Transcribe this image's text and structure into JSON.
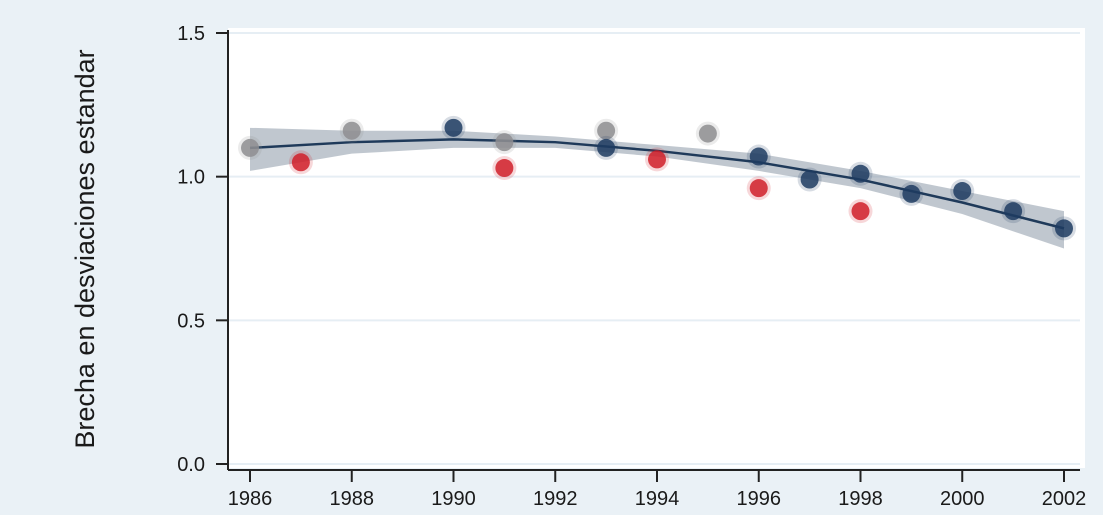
{
  "chart_data": {
    "type": "scatter",
    "title": "",
    "xlabel": "",
    "ylabel": "Brecha en desviaciones estandar",
    "xlim": [
      1986,
      2002
    ],
    "ylim": [
      0,
      1.5
    ],
    "x_ticks": [
      1986,
      1988,
      1990,
      1992,
      1994,
      1996,
      1998,
      2000,
      2002
    ],
    "y_ticks": [
      0.0,
      0.5,
      1.0,
      1.5
    ],
    "y_tick_labels": [
      "0.0",
      "0.5",
      "1.0",
      "1.5"
    ],
    "grid": true,
    "legend": "none",
    "colors": {
      "background": "#eaf1f6",
      "plot_area": "#ffffff",
      "grid": "#e6eef4",
      "axis": "#222222",
      "fit_line": "#1f3a5a",
      "confidence_band": "#8c99a8"
    },
    "series": [
      {
        "color": "#1f3c62",
        "points": [
          {
            "x": 1990,
            "y": 1.17
          },
          {
            "x": 1993,
            "y": 1.1
          },
          {
            "x": 1996,
            "y": 1.07
          },
          {
            "x": 1997,
            "y": 0.99
          },
          {
            "x": 1998,
            "y": 1.01
          },
          {
            "x": 1999,
            "y": 0.94
          },
          {
            "x": 2000,
            "y": 0.95
          },
          {
            "x": 2001,
            "y": 0.88
          },
          {
            "x": 2002,
            "y": 0.82
          }
        ]
      },
      {
        "color": "#d0202a",
        "points": [
          {
            "x": 1987,
            "y": 1.05
          },
          {
            "x": 1991,
            "y": 1.03
          },
          {
            "x": 1994,
            "y": 1.06
          },
          {
            "x": 1996,
            "y": 0.96
          },
          {
            "x": 1998,
            "y": 0.88
          }
        ]
      },
      {
        "color": "#8e8e92",
        "points": [
          {
            "x": 1986,
            "y": 1.1
          },
          {
            "x": 1988,
            "y": 1.16
          },
          {
            "x": 1991,
            "y": 1.12
          },
          {
            "x": 1993,
            "y": 1.16
          },
          {
            "x": 1995,
            "y": 1.15
          }
        ]
      }
    ],
    "fit_line": {
      "points": [
        {
          "x": 1986,
          "y": 1.1
        },
        {
          "x": 1988,
          "y": 1.12
        },
        {
          "x": 1990,
          "y": 1.13
        },
        {
          "x": 1992,
          "y": 1.12
        },
        {
          "x": 1994,
          "y": 1.09
        },
        {
          "x": 1996,
          "y": 1.05
        },
        {
          "x": 1998,
          "y": 0.99
        },
        {
          "x": 2000,
          "y": 0.91
        },
        {
          "x": 2002,
          "y": 0.82
        }
      ],
      "band_upper": [
        {
          "x": 1986,
          "y": 1.17
        },
        {
          "x": 1988,
          "y": 1.16
        },
        {
          "x": 1990,
          "y": 1.16
        },
        {
          "x": 1992,
          "y": 1.14
        },
        {
          "x": 1994,
          "y": 1.11
        },
        {
          "x": 1996,
          "y": 1.08
        },
        {
          "x": 1998,
          "y": 1.02
        },
        {
          "x": 2000,
          "y": 0.95
        },
        {
          "x": 2002,
          "y": 0.88
        }
      ],
      "band_lower": [
        {
          "x": 1986,
          "y": 1.02
        },
        {
          "x": 1988,
          "y": 1.08
        },
        {
          "x": 1990,
          "y": 1.1
        },
        {
          "x": 1992,
          "y": 1.1
        },
        {
          "x": 1994,
          "y": 1.07
        },
        {
          "x": 1996,
          "y": 1.02
        },
        {
          "x": 1998,
          "y": 0.96
        },
        {
          "x": 2000,
          "y": 0.87
        },
        {
          "x": 2002,
          "y": 0.75
        }
      ]
    }
  }
}
